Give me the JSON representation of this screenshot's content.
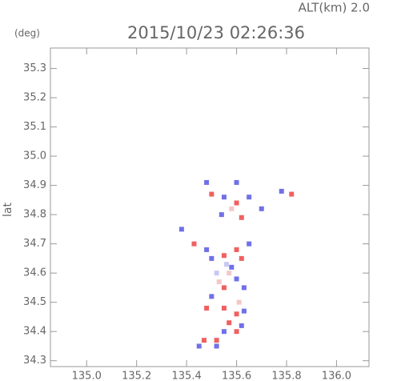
{
  "chart_data": {
    "type": "field",
    "title": "2015/10/23 02:26:36",
    "annotation": "ALT(km) 2.0",
    "unit_label": "(deg)",
    "y_label": "lat",
    "xlim": [
      134.855,
      136.13
    ],
    "ylim": [
      34.28,
      35.37
    ],
    "xticks": [
      {
        "value": 135,
        "label": "135.0"
      },
      135.2,
      135.4,
      135.6,
      135.8,
      {
        "value": 136,
        "label": "136.0"
      }
    ],
    "yticks": [
      34.3,
      34.4,
      34.5,
      34.6,
      34.7,
      34.8,
      34.9,
      {
        "value": 35,
        "label": "35.0"
      },
      35.1,
      35.2,
      35.3
    ],
    "cells": {
      "x": [
        135.48,
        135.5,
        135.55,
        135.6,
        135.65,
        135.7,
        135.54,
        135.62,
        135.58,
        135.78,
        135.82,
        135.6,
        135.43,
        135.48,
        135.5,
        135.55,
        135.6,
        135.62,
        135.58,
        135.52,
        135.6,
        135.55,
        135.63,
        135.5,
        135.48,
        135.55,
        135.6,
        135.63,
        135.57,
        135.62,
        135.55,
        135.6,
        135.52,
        135.47,
        135.45,
        135.52,
        135.57,
        135.65,
        135.38,
        135.56,
        135.53,
        135.61
      ],
      "y": [
        34.91,
        34.87,
        34.86,
        34.84,
        34.86,
        34.82,
        34.8,
        34.79,
        34.82,
        34.88,
        34.87,
        34.91,
        34.7,
        34.68,
        34.65,
        34.66,
        34.68,
        34.65,
        34.62,
        34.6,
        34.58,
        34.55,
        34.55,
        34.52,
        34.48,
        34.48,
        34.46,
        34.47,
        34.43,
        34.42,
        34.4,
        34.4,
        34.37,
        34.37,
        34.35,
        34.35,
        34.6,
        34.7,
        34.75,
        34.63,
        34.57,
        34.5
      ],
      "colors": [
        "#7070e8",
        "#f06060",
        "#7070e8",
        "#f06060",
        "#7070e8",
        "#7070e8",
        "#7070e8",
        "#f06060",
        "#f4c8c8",
        "#7070e8",
        "#f06060",
        "#7070e8",
        "#f06060",
        "#7070e8",
        "#7070e8",
        "#f06060",
        "#f06060",
        "#f06060",
        "#7070e8",
        "#c8c8f4",
        "#7070e8",
        "#f06060",
        "#7070e8",
        "#7070e8",
        "#f06060",
        "#f06060",
        "#f06060",
        "#7070e8",
        "#f06060",
        "#7070e8",
        "#7070e8",
        "#f06060",
        "#f06060",
        "#f06060",
        "#7070e8",
        "#7070e8",
        "#f4c8c8",
        "#7070e8",
        "#7070e8",
        "#c8c8f4",
        "#f4c8c8",
        "#f4c8c8"
      ]
    }
  }
}
